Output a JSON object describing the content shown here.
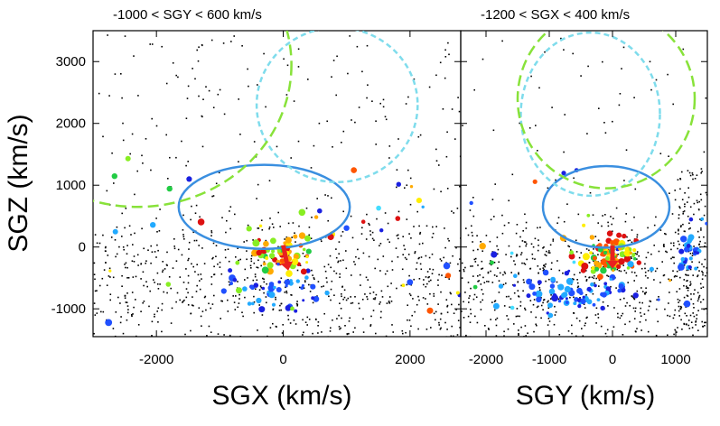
{
  "chart_data": [
    {
      "type": "scatter",
      "title": "-1000 < SGY < 600 km/s",
      "xlabel": "SGX (km/s)",
      "ylabel": "SGZ (km/s)",
      "xlim": [
        -3000,
        2800
      ],
      "ylim": [
        -1450,
        3500
      ],
      "xticks": [
        -2000,
        0,
        2000
      ],
      "yticks": [
        -1000,
        0,
        1000,
        2000,
        3000
      ],
      "ellipses": [
        {
          "name": "blue-ellipse",
          "color": "#3a8fe0",
          "dash": false,
          "cx": -300,
          "cy": 650,
          "rx": 1350,
          "ry": 680
        },
        {
          "name": "cyan-circle",
          "color": "#7fdcec",
          "dash": true,
          "cx": 850,
          "cy": 2300,
          "rx": 1270,
          "ry": 1250
        },
        {
          "name": "green-circle",
          "color": "#88e23a",
          "dash": true,
          "cx": -2300,
          "cy": 2950,
          "rx": 2430,
          "ry": 2300
        }
      ],
      "arrow": {
        "color": "#e82020",
        "x0": 0,
        "y0": 30,
        "x1": 80,
        "y1": -380
      }
    },
    {
      "type": "scatter",
      "title": "-1200 < SGX < 400 km/s",
      "xlabel": "SGY (km/s)",
      "ylabel": "",
      "xlim": [
        -2400,
        1500
      ],
      "ylim": [
        -1450,
        3500
      ],
      "xticks": [
        -2000,
        -1000,
        0,
        1000
      ],
      "yticks": [
        -1000,
        0,
        1000,
        2000,
        3000
      ],
      "ellipses": [
        {
          "name": "blue-ellipse",
          "color": "#3a8fe0",
          "dash": false,
          "cx": -100,
          "cy": 650,
          "rx": 1000,
          "ry": 660
        },
        {
          "name": "cyan-circle",
          "color": "#7fdcec",
          "dash": true,
          "cx": -350,
          "cy": 2150,
          "rx": 1100,
          "ry": 1320
        },
        {
          "name": "green-circle",
          "color": "#88e23a",
          "dash": true,
          "cx": -100,
          "cy": 2400,
          "rx": 1400,
          "ry": 1450
        }
      ],
      "arrow": {
        "color": "#e82020",
        "x0": 0,
        "y0": 30,
        "x1": 0,
        "y1": -350
      }
    }
  ]
}
